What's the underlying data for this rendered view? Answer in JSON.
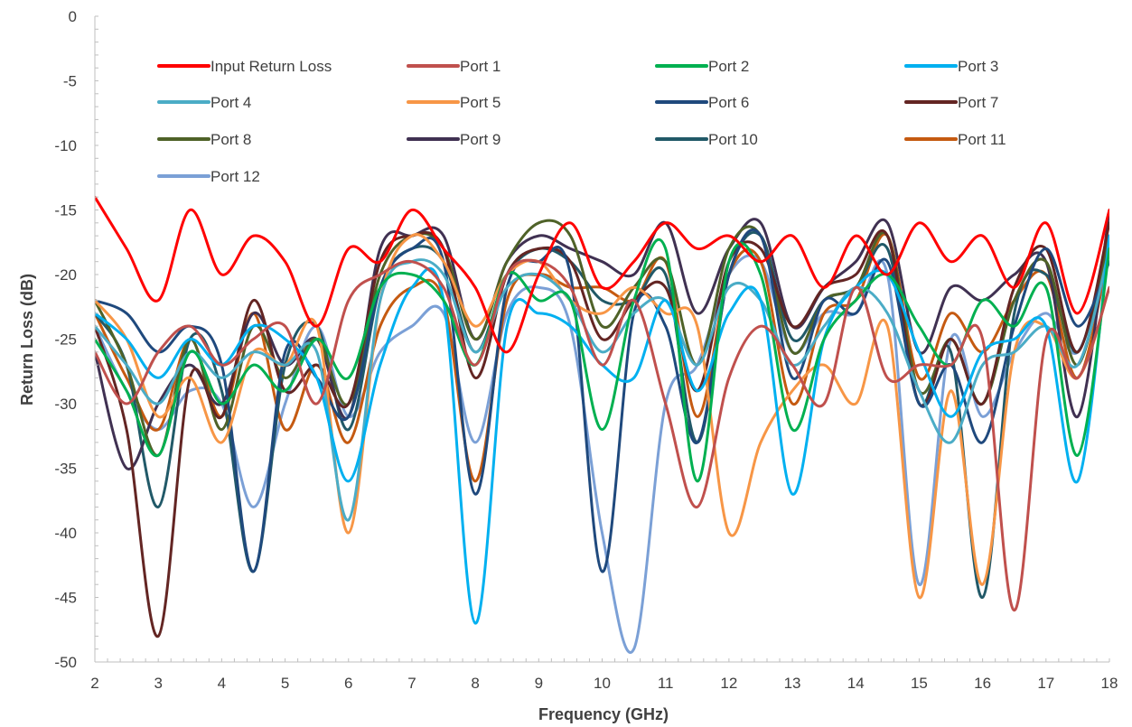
{
  "chart_data": {
    "type": "line",
    "title": "",
    "xlabel": "Frequency (GHz)",
    "ylabel": "Return Loss (dB)",
    "xlim": [
      2,
      18
    ],
    "ylim": [
      -50,
      0
    ],
    "x_ticks": [
      "2",
      "3",
      "4",
      "5",
      "6",
      "7",
      "8",
      "9",
      "10",
      "11",
      "12",
      "13",
      "14",
      "15",
      "16",
      "17",
      "18"
    ],
    "y_ticks": [
      "0",
      "-5",
      "-10",
      "-15",
      "-20",
      "-25",
      "-30",
      "-35",
      "-40",
      "-45",
      "-50"
    ],
    "grid": false,
    "legend_position": "top",
    "x": [
      2,
      2.5,
      3,
      3.5,
      4,
      4.5,
      5,
      5.5,
      6,
      6.5,
      7,
      7.5,
      8,
      8.5,
      9,
      9.5,
      10,
      10.5,
      11,
      11.5,
      12,
      12.5,
      13,
      13.5,
      14,
      14.5,
      15,
      15.5,
      16,
      16.5,
      17,
      17.5,
      18
    ],
    "series": [
      {
        "name": "Input Return Loss",
        "color": "#ff0000",
        "values": [
          -14,
          -18,
          -22,
          -15,
          -20,
          -17,
          -19,
          -24,
          -18,
          -19,
          -15,
          -18,
          -21,
          -26,
          -20,
          -16,
          -21,
          -19,
          -16,
          -18,
          -17,
          -19,
          -17,
          -21,
          -17,
          -20,
          -16,
          -19,
          -17,
          -21,
          -16,
          -23,
          -15
        ]
      },
      {
        "name": "Port 1",
        "color": "#c0504d",
        "values": [
          -26,
          -30,
          -26,
          -24,
          -27,
          -25,
          -24,
          -30,
          -22,
          -20,
          -19,
          -21,
          -27,
          -20,
          -19,
          -21,
          -27,
          -22,
          -30,
          -38,
          -28,
          -24,
          -27,
          -30,
          -21,
          -28,
          -27,
          -27,
          -25,
          -46,
          -25,
          -28,
          -21
        ]
      },
      {
        "name": "Port 2",
        "color": "#00b050",
        "values": [
          -25,
          -29,
          -34,
          -26,
          -30,
          -27,
          -29,
          -25,
          -28,
          -21,
          -20,
          -22,
          -27,
          -20,
          -22,
          -22,
          -32,
          -22,
          -18,
          -36,
          -19,
          -20,
          -32,
          -25,
          -22,
          -20,
          -24,
          -27,
          -22,
          -24,
          -21,
          -34,
          -18
        ]
      },
      {
        "name": "Port 3",
        "color": "#00b0f0",
        "values": [
          -23,
          -25,
          -28,
          -25,
          -27,
          -24,
          -25,
          -28,
          -36,
          -27,
          -21,
          -22,
          -47,
          -24,
          -23,
          -24,
          -27,
          -28,
          -22,
          -29,
          -23,
          -22,
          -37,
          -25,
          -21,
          -20,
          -26,
          -31,
          -26,
          -25,
          -24,
          -36,
          -17
        ]
      },
      {
        "name": "Port 4",
        "color": "#4bacc6",
        "values": [
          -24,
          -27,
          -30,
          -26,
          -28,
          -26,
          -27,
          -26,
          -39,
          -22,
          -19,
          -20,
          -26,
          -21,
          -20,
          -22,
          -26,
          -23,
          -22,
          -27,
          -21,
          -22,
          -27,
          -24,
          -21,
          -23,
          -29,
          -33,
          -27,
          -26,
          -24,
          -27,
          -18
        ]
      },
      {
        "name": "Port 5",
        "color": "#f79646",
        "values": [
          -22,
          -25,
          -31,
          -28,
          -33,
          -26,
          -27,
          -24,
          -40,
          -22,
          -17,
          -19,
          -24,
          -20,
          -19,
          -22,
          -23,
          -21,
          -23,
          -24,
          -40,
          -33,
          -29,
          -27,
          -30,
          -24,
          -45,
          -29,
          -44,
          -26,
          -24,
          -28,
          -21
        ]
      },
      {
        "name": "Port 6",
        "color": "#1f497d",
        "values": [
          -22,
          -23,
          -26,
          -24,
          -27,
          -43,
          -26,
          -28,
          -31,
          -21,
          -18,
          -19,
          -37,
          -21,
          -19,
          -20,
          -43,
          -23,
          -24,
          -33,
          -20,
          -17,
          -28,
          -22,
          -23,
          -19,
          -30,
          -27,
          -33,
          -24,
          -18,
          -24,
          -19
        ]
      },
      {
        "name": "Port 7",
        "color": "#632523",
        "values": [
          -24,
          -32,
          -48,
          -28,
          -31,
          -22,
          -29,
          -27,
          -30,
          -19,
          -17,
          -18,
          -28,
          -20,
          -18,
          -19,
          -25,
          -22,
          -21,
          -29,
          -19,
          -18,
          -24,
          -21,
          -20,
          -17,
          -30,
          -25,
          -30,
          -21,
          -18,
          -26,
          -16
        ]
      },
      {
        "name": "Port 8",
        "color": "#4f6228",
        "values": [
          -22,
          -27,
          -34,
          -25,
          -32,
          -24,
          -28,
          -25,
          -30,
          -20,
          -17,
          -18,
          -25,
          -19,
          -16,
          -17,
          -24,
          -21,
          -19,
          -27,
          -18,
          -17,
          -26,
          -22,
          -21,
          -17,
          -29,
          -25,
          -30,
          -22,
          -19,
          -27,
          -17
        ]
      },
      {
        "name": "Port 9",
        "color": "#403152",
        "values": [
          -26,
          -35,
          -30,
          -27,
          -30,
          -23,
          -27,
          -25,
          -31,
          -18,
          -17,
          -17,
          -25,
          -19,
          -17,
          -18,
          -19,
          -20,
          -16,
          -23,
          -18,
          -16,
          -24,
          -21,
          -19,
          -16,
          -26,
          -21,
          -22,
          -20,
          -19,
          -31,
          -15
        ]
      },
      {
        "name": "Port 10",
        "color": "#215968",
        "values": [
          -23,
          -27,
          -38,
          -25,
          -29,
          -43,
          -27,
          -24,
          -32,
          -21,
          -18,
          -19,
          -26,
          -20,
          -18,
          -19,
          -22,
          -22,
          -20,
          -33,
          -20,
          -17,
          -25,
          -22,
          -21,
          -18,
          -30,
          -26,
          -45,
          -23,
          -20,
          -26,
          -17
        ]
      },
      {
        "name": "Port 11",
        "color": "#c55a11",
        "values": [
          -23,
          -28,
          -32,
          -25,
          -31,
          -23,
          -32,
          -27,
          -33,
          -24,
          -21,
          -22,
          -36,
          -22,
          -20,
          -21,
          -21,
          -22,
          -19,
          -31,
          -20,
          -19,
          -30,
          -23,
          -22,
          -17,
          -28,
          -23,
          -26,
          -22,
          -20,
          -28,
          -18
        ]
      },
      {
        "name": "Port 12",
        "color": "#7ba0d6",
        "values": [
          -24,
          -29,
          -32,
          -29,
          -30,
          -38,
          -30,
          -24,
          -31,
          -26,
          -24,
          -23,
          -33,
          -23,
          -21,
          -24,
          -40,
          -49,
          -30,
          -27,
          -20,
          -19,
          -26,
          -23,
          -23,
          -20,
          -44,
          -25,
          -31,
          -26,
          -23,
          -26,
          -18
        ]
      }
    ]
  }
}
